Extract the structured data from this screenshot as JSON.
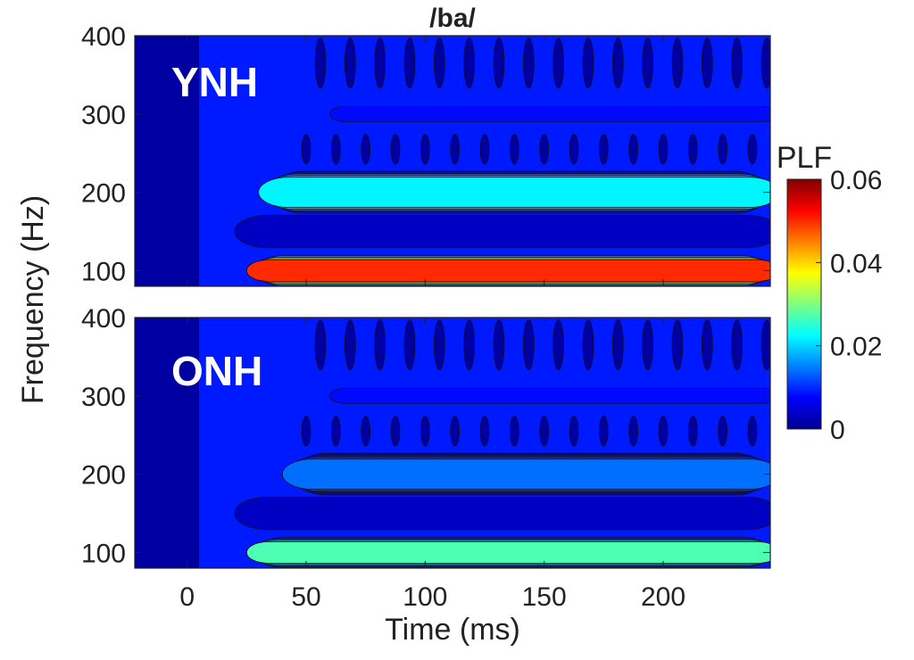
{
  "chart_data": [
    {
      "type": "heatmap",
      "panel": "YNH",
      "title": "/ba/",
      "xlabel": "Time (ms)",
      "ylabel": "Frequency (Hz)",
      "xlim": [
        -22,
        245
      ],
      "ylim": [
        80,
        400
      ],
      "xticks": [
        0,
        50,
        100,
        150,
        200
      ],
      "yticks": [
        100,
        200,
        300,
        400
      ],
      "bands": [
        {
          "freq": 100,
          "t_start": 25,
          "t_end": 245,
          "value": 0.05
        },
        {
          "freq": 200,
          "t_start": 30,
          "t_end": 245,
          "value": 0.022
        },
        {
          "freq": 150,
          "t_start": 20,
          "t_end": 245,
          "value": 0.004
        },
        {
          "freq": 300,
          "t_start": 60,
          "t_end": 245,
          "value": 0.008
        }
      ]
    },
    {
      "type": "heatmap",
      "panel": "ONH",
      "title": "",
      "xlabel": "Time (ms)",
      "ylabel": "Frequency (Hz)",
      "xlim": [
        -22,
        245
      ],
      "ylim": [
        80,
        400
      ],
      "xticks": [
        0,
        50,
        100,
        150,
        200
      ],
      "yticks": [
        100,
        200,
        300,
        400
      ],
      "bands": [
        {
          "freq": 100,
          "t_start": 25,
          "t_end": 245,
          "value": 0.027
        },
        {
          "freq": 200,
          "t_start": 40,
          "t_end": 245,
          "value": 0.014
        },
        {
          "freq": 150,
          "t_start": 20,
          "t_end": 245,
          "value": 0.004
        },
        {
          "freq": 300,
          "t_start": 60,
          "t_end": 245,
          "value": 0.008
        }
      ]
    }
  ],
  "labels": {
    "title": "/ba/",
    "panel_top": "YNH",
    "panel_bottom": "ONH",
    "xlabel": "Time (ms)",
    "ylabel": "Frequency (Hz)",
    "colorbar_label": "PLF"
  },
  "colorbar": {
    "min": 0,
    "max": 0.06,
    "ticks": [
      {
        "value": 0,
        "label": "0"
      },
      {
        "value": 0.02,
        "label": "0.02"
      },
      {
        "value": 0.04,
        "label": "0.04"
      },
      {
        "value": 0.06,
        "label": "0.06"
      }
    ],
    "colormap": "jet"
  }
}
